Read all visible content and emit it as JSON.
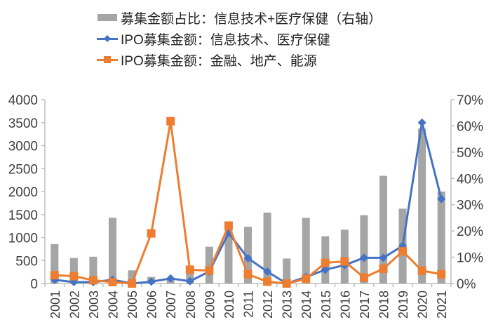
{
  "chart_data": {
    "type": "bar+line",
    "title": "",
    "categories": [
      "2001",
      "2002",
      "2003",
      "2004",
      "2005",
      "2006",
      "2007",
      "2008",
      "2009",
      "2010",
      "2011",
      "2012",
      "2013",
      "2014",
      "2015",
      "2016",
      "2017",
      "2018",
      "2019",
      "2020",
      "2021"
    ],
    "series": [
      {
        "name": "募集金额占比：信息技术+医疗保健（右轴）",
        "type": "bar",
        "axis": "right",
        "color": "#a5a5a5",
        "values": [
          15,
          9.7,
          10.2,
          25,
          5,
          2.5,
          2,
          5,
          14,
          21,
          21.6,
          27,
          9.5,
          25,
          18,
          20.5,
          26,
          41,
          28.5,
          59,
          35
        ]
      },
      {
        "name": "IPO募集金额：信息技术、医疗保健",
        "type": "line",
        "axis": "left",
        "color": "#4472c4",
        "marker": "diamond",
        "values": [
          80,
          30,
          30,
          80,
          0,
          40,
          110,
          50,
          260,
          1100,
          550,
          260,
          0,
          140,
          300,
          400,
          560,
          560,
          820,
          3500,
          1840
        ]
      },
      {
        "name": "IPO募集金额：金融、地产、能源",
        "type": "line",
        "axis": "left",
        "color": "#ed7d31",
        "marker": "square",
        "values": [
          180,
          160,
          70,
          30,
          0,
          1090,
          3530,
          300,
          280,
          1260,
          200,
          40,
          0,
          100,
          450,
          480,
          130,
          320,
          700,
          280,
          200
        ]
      }
    ],
    "xlabel": "",
    "ylabel": "",
    "ylim": [
      0,
      4000
    ],
    "y_ticks": [
      "0",
      "500",
      "1000",
      "1500",
      "2000",
      "2500",
      "3000",
      "3500",
      "4000"
    ],
    "y2lim": [
      0,
      70
    ],
    "y2_ticks": [
      "0%",
      "10%",
      "20%",
      "30%",
      "40%",
      "50%",
      "60%",
      "70%"
    ],
    "grid": false,
    "legend_position": "top"
  },
  "legend": [
    {
      "label": "募集金额占比：信息技术+医疗保健（右轴）",
      "kind": "bar"
    },
    {
      "label": "IPO募集金额：信息技术、医疗保健",
      "kind": "line-diamond"
    },
    {
      "label": "IPO募集金额：金融、地产、能源",
      "kind": "line-square"
    }
  ]
}
